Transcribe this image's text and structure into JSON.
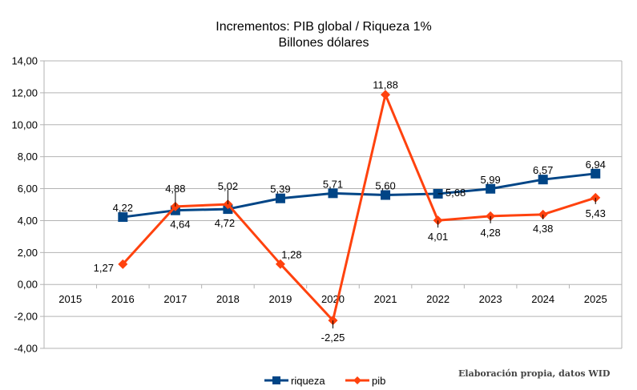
{
  "chart_data": {
    "type": "line",
    "title": "Incrementos: PIB global / Riqueza 1%",
    "subtitle": "Billones dólares",
    "xlabel": "",
    "ylabel": "",
    "categories": [
      "2015",
      "2016",
      "2017",
      "2018",
      "2019",
      "2020",
      "2021",
      "2022",
      "2023",
      "2024",
      "2025"
    ],
    "ylim": [
      -4,
      14
    ],
    "ystep": 2,
    "ytick_labels": [
      "-4,00",
      "-2,00",
      "0,00",
      "2,00",
      "4,00",
      "6,00",
      "8,00",
      "10,00",
      "12,00",
      "14,00"
    ],
    "grid": true,
    "legend_position": "bottom",
    "series": [
      {
        "name": "riqueza",
        "color": "#004586",
        "marker": "square",
        "values": [
          null,
          4.22,
          4.64,
          4.72,
          5.39,
          5.71,
          5.6,
          5.68,
          5.99,
          6.57,
          6.94
        ],
        "labels": [
          null,
          "4,22",
          "4,64",
          "4,72",
          "5,39",
          "5,71",
          "5,60",
          "5,68",
          "5,99",
          "6,57",
          "6,94"
        ]
      },
      {
        "name": "pib",
        "color": "#ff420e",
        "marker": "diamond",
        "values": [
          null,
          1.27,
          4.88,
          5.02,
          1.28,
          -2.25,
          11.88,
          4.01,
          4.28,
          4.38,
          5.43
        ],
        "labels": [
          null,
          "1,27",
          "4,88",
          "5,02",
          "1,28",
          "-2,25",
          "11,88",
          "4,01",
          "4,28",
          "4,38",
          "5,43"
        ]
      }
    ]
  },
  "credit": "Elaboración propia, datos WID"
}
